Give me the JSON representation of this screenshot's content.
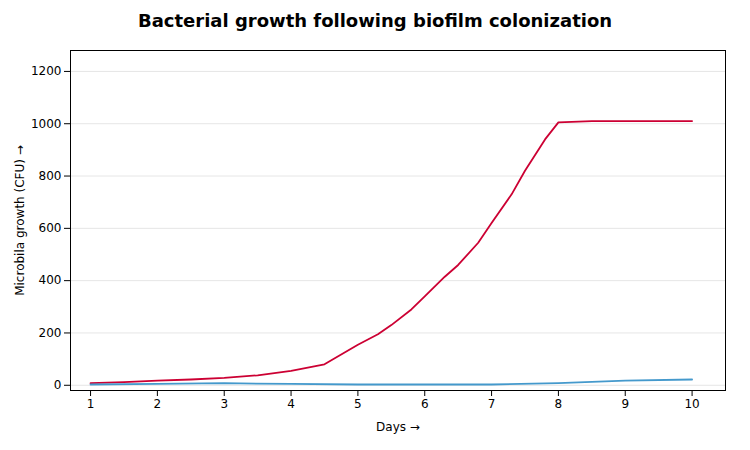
{
  "chart_data": {
    "type": "line",
    "title": "Bacterial growth following biofilm colonization",
    "xlabel": "Days",
    "ylabel": "Microbila growth (CFU)",
    "xlim": [
      0.7,
      10.5
    ],
    "ylim": [
      -20,
      1280
    ],
    "xticks": [
      1,
      2,
      3,
      4,
      5,
      6,
      7,
      8,
      9,
      10
    ],
    "yticks": [
      0,
      200,
      400,
      600,
      800,
      1000,
      1200
    ],
    "grid": "y",
    "series": [
      {
        "color": "#cc0033",
        "x": [
          1,
          1.5,
          2,
          2.5,
          3,
          3.5,
          4,
          4.5,
          5,
          5.3,
          5.5,
          5.8,
          6,
          6.3,
          6.5,
          6.8,
          7,
          7.3,
          7.5,
          7.8,
          8,
          8.5,
          9,
          9.5,
          10
        ],
        "values": [
          8,
          12,
          18,
          22,
          28,
          38,
          55,
          80,
          155,
          195,
          230,
          290,
          340,
          415,
          460,
          545,
          620,
          730,
          820,
          940,
          1005,
          1010,
          1010,
          1010,
          1010
        ]
      },
      {
        "color": "#4499cc",
        "x": [
          1,
          2,
          3,
          4,
          5,
          6,
          7,
          8,
          9,
          10
        ],
        "values": [
          3,
          5,
          8,
          5,
          3,
          3,
          3,
          8,
          18,
          22
        ]
      }
    ]
  }
}
